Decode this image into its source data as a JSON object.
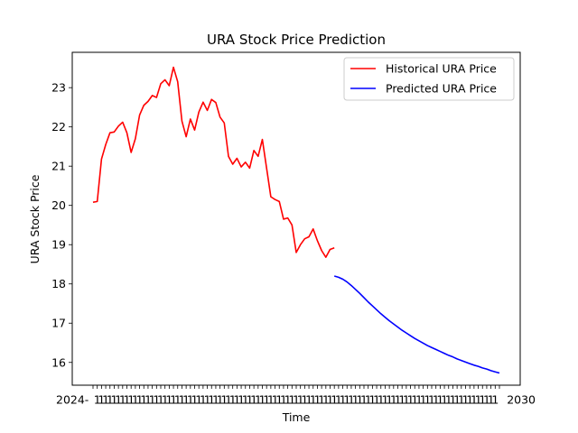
{
  "chart_data": {
    "type": "line",
    "title": "URA Stock Price Prediction",
    "xlabel": "Time",
    "ylabel": "URA Stock Price",
    "ylim": [
      15.42,
      23.9
    ],
    "yticks": [
      16,
      17,
      18,
      19,
      20,
      21,
      22,
      23
    ],
    "grid": false,
    "legend_position": "top-right",
    "x_tick_labels_left": "2024-",
    "x_tick_labels_right": "2030",
    "series": [
      {
        "name": "Historical URA Price",
        "color": "#ff0000",
        "x_start": 0,
        "values": [
          20.08,
          20.1,
          21.18,
          21.55,
          21.85,
          21.87,
          22.02,
          22.12,
          21.85,
          21.35,
          21.7,
          22.3,
          22.55,
          22.65,
          22.8,
          22.75,
          23.1,
          23.2,
          23.05,
          23.52,
          23.15,
          22.15,
          21.75,
          22.2,
          21.92,
          22.38,
          22.63,
          22.42,
          22.7,
          22.62,
          22.25,
          22.1,
          21.25,
          21.05,
          21.2,
          20.98,
          21.1,
          20.95,
          21.4,
          21.25,
          21.68,
          20.95,
          20.22,
          20.15,
          20.1,
          19.65,
          19.68,
          19.5,
          18.8,
          19.0,
          19.15,
          19.2,
          19.4,
          19.1,
          18.85,
          18.68,
          18.88,
          18.92
        ]
      },
      {
        "name": "Predicted URA Price",
        "color": "#0000ff",
        "x_start": 57,
        "values": [
          18.2,
          18.17,
          18.12,
          18.05,
          17.96,
          17.86,
          17.76,
          17.65,
          17.54,
          17.44,
          17.34,
          17.24,
          17.15,
          17.06,
          16.98,
          16.9,
          16.82,
          16.75,
          16.68,
          16.61,
          16.55,
          16.49,
          16.43,
          16.38,
          16.33,
          16.28,
          16.23,
          16.18,
          16.14,
          16.09,
          16.05,
          16.01,
          15.97,
          15.93,
          15.9,
          15.86,
          15.83,
          15.79,
          15.76,
          15.73
        ]
      }
    ]
  }
}
